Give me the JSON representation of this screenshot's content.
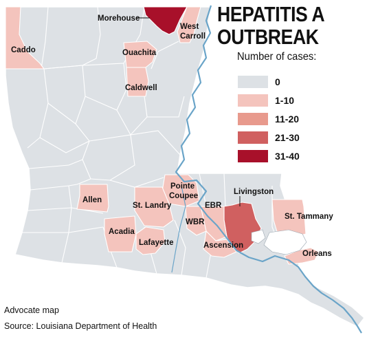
{
  "title": {
    "line1": "HEPATITIS A",
    "line2": "OUTBREAK"
  },
  "legend": {
    "title": "Number of cases:",
    "items": [
      {
        "label": "0",
        "color": "#dde1e5"
      },
      {
        "label": "1-10",
        "color": "#f4c4bd"
      },
      {
        "label": "11-20",
        "color": "#e89a8d"
      },
      {
        "label": "21-30",
        "color": "#d06060"
      },
      {
        "label": "31-40",
        "color": "#a8102a"
      }
    ]
  },
  "colors": {
    "base_parish": "#dde1e5",
    "water": "#ffffff",
    "river": "#6aa4c8",
    "border": "#ffffff"
  },
  "parishes": [
    {
      "name": "Morehouse",
      "category": "31-40"
    },
    {
      "name": "West Carroll",
      "category": "1-10"
    },
    {
      "name": "Caddo",
      "category": "1-10"
    },
    {
      "name": "Ouachita",
      "category": "1-10"
    },
    {
      "name": "Caldwell",
      "category": "1-10"
    },
    {
      "name": "Allen",
      "category": "1-10"
    },
    {
      "name": "Pointe Coupee",
      "category": "1-10"
    },
    {
      "name": "St. Landry",
      "category": "1-10"
    },
    {
      "name": "Livingston",
      "category": "21-30"
    },
    {
      "name": "EBR",
      "category": "1-10"
    },
    {
      "name": "St. Tammany",
      "category": "1-10"
    },
    {
      "name": "Acadia",
      "category": "1-10"
    },
    {
      "name": "WBR",
      "category": "1-10"
    },
    {
      "name": "Lafayette",
      "category": "1-10"
    },
    {
      "name": "Ascension",
      "category": "1-10"
    },
    {
      "name": "Orleans",
      "category": "1-10"
    }
  ],
  "footer": {
    "credit": "Advocate map",
    "source": "Source: Louisiana Department of Health"
  }
}
